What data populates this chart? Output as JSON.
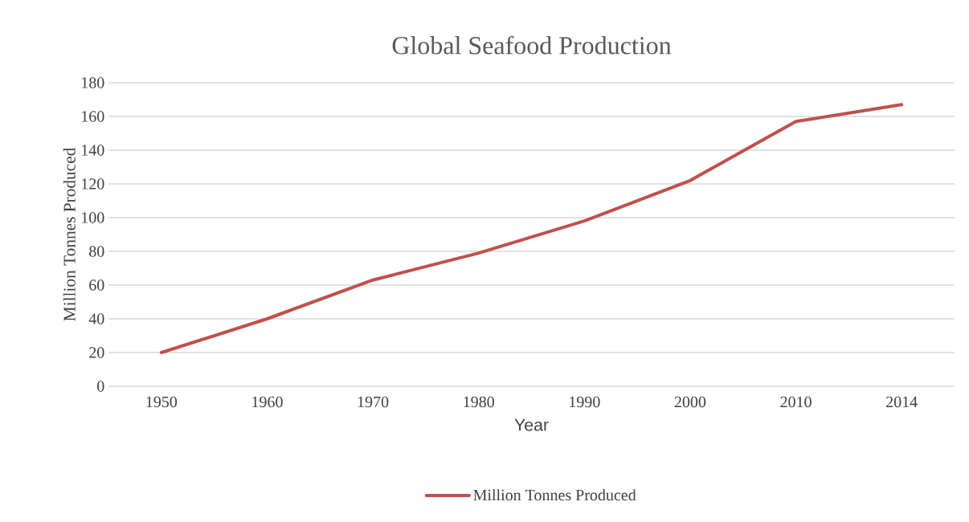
{
  "chart_data": {
    "type": "line",
    "title": "Global Seafood Production",
    "xlabel": "Year",
    "ylabel": "Million Tonnes Produced",
    "categories": [
      "1950",
      "1960",
      "1970",
      "1980",
      "1990",
      "2000",
      "2010",
      "2014"
    ],
    "series": [
      {
        "name": "Million Tonnes Produced",
        "color": "#c0504d",
        "values": [
          20,
          40,
          63,
          79,
          98,
          122,
          157,
          167
        ]
      }
    ],
    "ylim": [
      0,
      180
    ],
    "yticks": [
      0,
      20,
      40,
      60,
      80,
      100,
      120,
      140,
      160,
      180
    ],
    "grid": "y",
    "legend": "bottom"
  }
}
